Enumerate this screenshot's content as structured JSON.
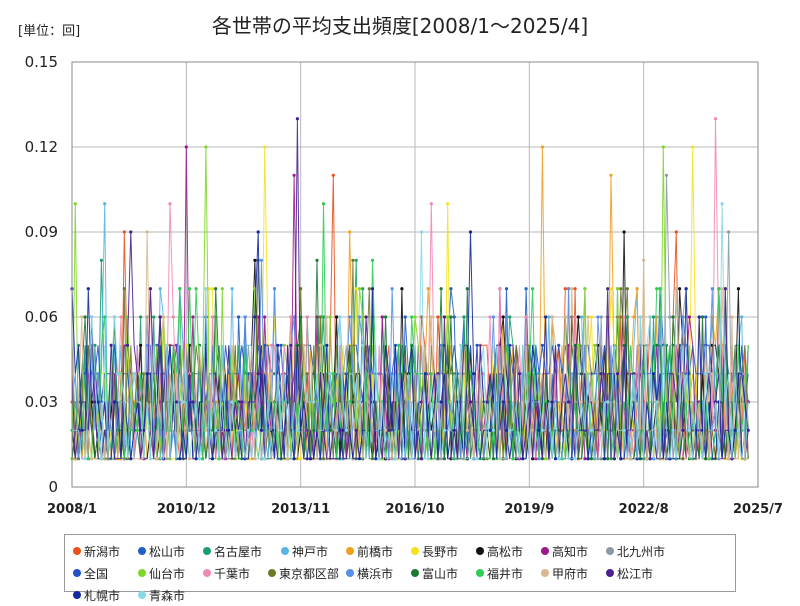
{
  "unit_label": "[単位：回]",
  "chart_data": {
    "type": "line",
    "title": "各世帯の平均支出頻度[2008/1～2025/4]",
    "xlabel": "",
    "ylabel": "",
    "ylim": [
      0,
      0.15
    ],
    "yticks": [
      "0",
      "0.03",
      "0.06",
      "0.09",
      "0.12",
      "0.15"
    ],
    "xticks": [
      "2008/1",
      "2010/12",
      "2013/11",
      "2016/10",
      "2019/9",
      "2022/8",
      "2025/7"
    ],
    "grid": true,
    "legend_position": "bottom",
    "x_start": "2008/1",
    "x_end": "2025/4",
    "note": "Each series is a monthly value between 0.01 and 0.13; values cluster 0.01–0.06 with sporadic spikes.",
    "series": [
      {
        "name": "新潟市",
        "color": "#e8501c",
        "peaks": [
          [
            "2009/5",
            0.09
          ],
          [
            "2014/9",
            0.11
          ],
          [
            "2023/6",
            0.09
          ]
        ]
      },
      {
        "name": "松山市",
        "color": "#1f5fc8",
        "peaks": [
          [
            "2011/6",
            0.06
          ],
          [
            "2019/2",
            0.07
          ]
        ]
      },
      {
        "name": "名古屋市",
        "color": "#1a9e6e",
        "peaks": [
          [
            "2008/10",
            0.08
          ],
          [
            "2015/4",
            0.08
          ]
        ]
      },
      {
        "name": "神戸市",
        "color": "#5ab4e6",
        "peaks": [
          [
            "2008/11",
            0.1
          ],
          [
            "2012/2",
            0.07
          ]
        ]
      },
      {
        "name": "前橋市",
        "color": "#f0a020",
        "peaks": [
          [
            "2021/10",
            0.11
          ],
          [
            "2020/1",
            0.12
          ],
          [
            "2015/2",
            0.09
          ]
        ]
      },
      {
        "name": "長野市",
        "color": "#f5e21a",
        "peaks": [
          [
            "2012/12",
            0.12
          ],
          [
            "2017/8",
            0.1
          ],
          [
            "2023/11",
            0.12
          ]
        ]
      },
      {
        "name": "高松市",
        "color": "#111111",
        "peaks": [
          [
            "2022/2",
            0.09
          ],
          [
            "2012/9",
            0.08
          ]
        ]
      },
      {
        "name": "高知市",
        "color": "#9c1a8c",
        "peaks": [
          [
            "2010/12",
            0.12
          ],
          [
            "2013/9",
            0.11
          ]
        ]
      },
      {
        "name": "北九州市",
        "color": "#8c9aa8",
        "peaks": [
          [
            "2023/3",
            0.11
          ],
          [
            "2024/10",
            0.09
          ]
        ]
      },
      {
        "name": "全国",
        "color": "#2352c8",
        "peaks": [
          [
            "2014/2",
            0.05
          ],
          [
            "2020/8",
            0.05
          ]
        ]
      },
      {
        "name": "仙台市",
        "color": "#7fd62a",
        "peaks": [
          [
            "2008/2",
            0.1
          ],
          [
            "2011/6",
            0.12
          ],
          [
            "2023/2",
            0.12
          ]
        ]
      },
      {
        "name": "千葉市",
        "color": "#ef8ab4",
        "peaks": [
          [
            "2010/7",
            0.1
          ],
          [
            "2024/6",
            0.13
          ],
          [
            "2017/3",
            0.1
          ]
        ]
      },
      {
        "name": "東京都区部",
        "color": "#6e7a28",
        "peaks": [
          [
            "2012/10",
            0.08
          ],
          [
            "2015/3",
            0.08
          ]
        ]
      },
      {
        "name": "横浜市",
        "color": "#5590e8",
        "peaks": [
          [
            "2012/11",
            0.08
          ],
          [
            "2020/9",
            0.07
          ]
        ]
      },
      {
        "name": "富山市",
        "color": "#1a7a32",
        "peaks": [
          [
            "2014/4",
            0.08
          ],
          [
            "2018/2",
            0.07
          ]
        ]
      },
      {
        "name": "福井市",
        "color": "#2ecc55",
        "peaks": [
          [
            "2014/6",
            0.1
          ],
          [
            "2015/9",
            0.08
          ]
        ]
      },
      {
        "name": "甲府市",
        "color": "#d8b890",
        "peaks": [
          [
            "2009/12",
            0.09
          ],
          [
            "2022/8",
            0.08
          ]
        ]
      },
      {
        "name": "松江市",
        "color": "#4a2090",
        "peaks": [
          [
            "2013/10",
            0.13
          ],
          [
            "2009/7",
            0.09
          ]
        ]
      },
      {
        "name": "札幌市",
        "color": "#1428a0",
        "peaks": [
          [
            "2012/10",
            0.09
          ],
          [
            "2018/3",
            0.09
          ]
        ]
      },
      {
        "name": "青森市",
        "color": "#88d8e8",
        "peaks": [
          [
            "2016/12",
            0.09
          ],
          [
            "2024/8",
            0.1
          ]
        ]
      }
    ]
  }
}
